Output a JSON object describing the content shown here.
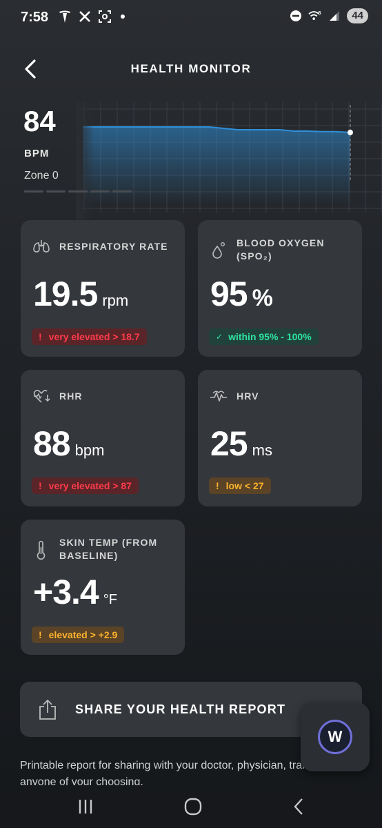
{
  "status_bar": {
    "time": "7:58",
    "battery": "44",
    "left_icons": [
      "tesla-icon",
      "x-icon",
      "screenshot-icon",
      "notification-dot-icon"
    ],
    "right_icons": [
      "do-not-disturb-icon",
      "wifi-6-icon",
      "signal-icon"
    ]
  },
  "header": {
    "title": "HEALTH MONITOR",
    "back_icon": "chevron-left-icon"
  },
  "heart_rate": {
    "value": "84",
    "unit": "BPM",
    "zone": "Zone 0",
    "trend_bpm": [
      86,
      86,
      86,
      86,
      86,
      86,
      86,
      86,
      86,
      86,
      85.5,
      85,
      85,
      85,
      85,
      84.5,
      84.5,
      84.3,
      84.3,
      84
    ],
    "line_color": "#2f8fd8"
  },
  "cards": {
    "respiratory": {
      "title": "RESPIRATORY RATE",
      "icon": "lungs-icon",
      "value": "19.5",
      "unit": "rpm",
      "badge_mark": "!",
      "badge": "very elevated > 18.7",
      "status": "red"
    },
    "blood_oxygen": {
      "title": "BLOOD OXYGEN (SPO₂)",
      "icon": "droplet-icon",
      "value": "95",
      "unit": "%",
      "badge_mark": "✓",
      "badge": "within 95% - 100%",
      "status": "green"
    },
    "rhr": {
      "title": "RHR",
      "icon": "heart-down-icon",
      "value": "88",
      "unit": "bpm",
      "badge_mark": "!",
      "badge": "very elevated > 87",
      "status": "red"
    },
    "hrv": {
      "title": "HRV",
      "icon": "heartbeat-wave-icon",
      "value": "25",
      "unit": "ms",
      "badge_mark": "!",
      "badge": "low < 27",
      "status": "orange"
    },
    "skin_temp": {
      "title": "SKIN TEMP (FROM BASELINE)",
      "icon": "thermometer-icon",
      "value": "+3.4",
      "unit": "°F",
      "badge_mark": "!",
      "badge": "elevated > +2.9",
      "status": "orange"
    }
  },
  "share": {
    "label": "SHARE YOUR HEALTH REPORT",
    "description": "Printable report for sharing with your doctor, physician, trainer, or anyone of your choosing."
  },
  "assistant": {
    "label": "W"
  },
  "colors": {
    "red": "#ff3b4a",
    "green": "#2ee3a0",
    "orange": "#ffb42e",
    "card_bg": "#34373c"
  }
}
